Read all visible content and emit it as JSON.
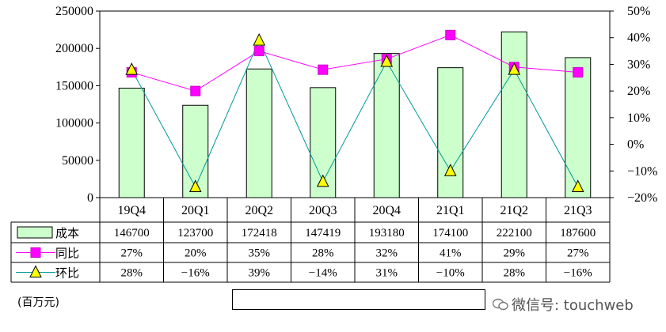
{
  "unit_label": "(百万元)",
  "watermark_text": "微信号: touchweb",
  "chart_data": {
    "type": "bar",
    "categories": [
      "19Q4",
      "20Q1",
      "20Q2",
      "20Q3",
      "20Q4",
      "21Q1",
      "21Q2",
      "21Q3"
    ],
    "series": [
      {
        "name": "成本",
        "type": "bar",
        "axis": "left",
        "values": [
          146700,
          123700,
          172418,
          147419,
          193180,
          174100,
          222100,
          187600
        ]
      },
      {
        "name": "同比",
        "type": "line",
        "axis": "right",
        "values": [
          27,
          20,
          35,
          28,
          32,
          41,
          29,
          27
        ]
      },
      {
        "name": "环比",
        "type": "line",
        "axis": "right",
        "values": [
          28,
          -16,
          39,
          -14,
          31,
          -10,
          28,
          -16
        ]
      }
    ],
    "table_rows": [
      {
        "label": "成本",
        "cells": [
          "146700",
          "123700",
          "172418",
          "147419",
          "193180",
          "174100",
          "222100",
          "187600"
        ]
      },
      {
        "label": "同比",
        "cells": [
          "27%",
          "20%",
          "35%",
          "28%",
          "32%",
          "41%",
          "29%",
          "27%"
        ]
      },
      {
        "label": "环比",
        "cells": [
          "28%",
          "−16%",
          "39%",
          "−14%",
          "31%",
          "−10%",
          "28%",
          "−16%"
        ]
      }
    ],
    "y_left": {
      "ylim": [
        0,
        250000
      ],
      "ticks": [
        "0",
        "50000",
        "100000",
        "150000",
        "200000",
        "250000"
      ]
    },
    "y_right": {
      "ylim": [
        -20,
        50
      ],
      "ticks": [
        "−20%",
        "−10%",
        "0%",
        "10%",
        "20%",
        "30%",
        "40%",
        "50%"
      ]
    },
    "legend": {
      "placement": "bottom",
      "items": [
        "成本",
        "同比",
        "环比"
      ]
    },
    "colors": {
      "bar_fill": "#ccffcc",
      "bar_stroke": "#000000",
      "yoy_line": "#ff00ff",
      "yoy_marker": "#ff00ff",
      "qoq_line": "#009999",
      "qoq_marker": "#ffff00"
    },
    "grid": false
  }
}
